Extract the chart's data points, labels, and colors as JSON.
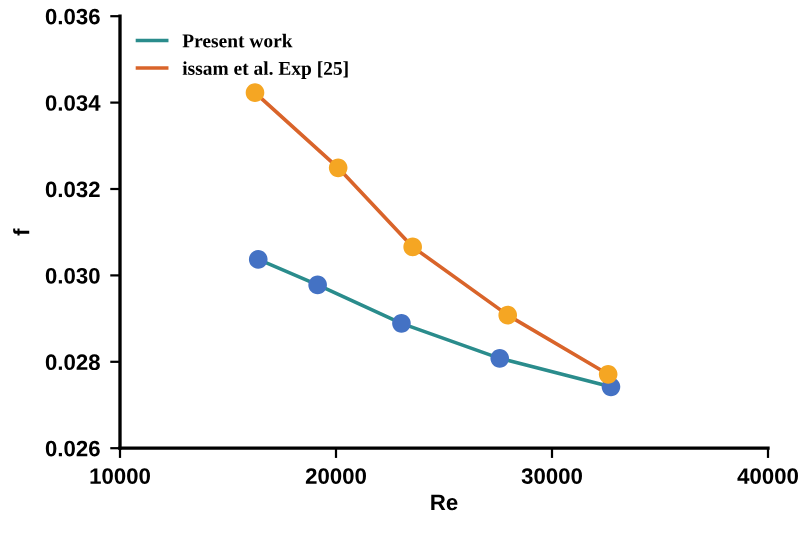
{
  "chart_data": {
    "type": "line",
    "xlabel": "Re",
    "ylabel": "f",
    "xlim": [
      10000,
      40000
    ],
    "xticks": [
      10000,
      20000,
      30000,
      40000
    ],
    "ylim": [
      0.026,
      0.036
    ],
    "yticks": [
      0.026,
      0.028,
      {
        "value": 0.03,
        "label": "0.030"
      },
      0.032,
      0.034,
      0.036
    ],
    "grid": false,
    "legend": "top left",
    "marker": "circle",
    "series": [
      {
        "name": "Present work",
        "color": "#2a8c8c",
        "colors": [
          "#4472c4",
          "#4472c4",
          "#4472c4",
          "#4472c4",
          "#4472c4"
        ],
        "x": [
          16400,
          19150,
          23030,
          27580,
          32730
        ],
        "values": [
          0.03037,
          0.02978,
          0.02889,
          0.02808,
          0.02742
        ]
      },
      {
        "name": "issam et al. Exp [25]",
        "color": "#d9642a",
        "colors": [
          "#f5a623",
          "#f5a623",
          "#f5a623",
          "#f5a623",
          "#f5a623"
        ],
        "x": [
          16250,
          20100,
          23550,
          27950,
          32600
        ],
        "values": [
          0.03423,
          0.03249,
          0.03066,
          0.02908,
          0.02771
        ]
      }
    ]
  }
}
